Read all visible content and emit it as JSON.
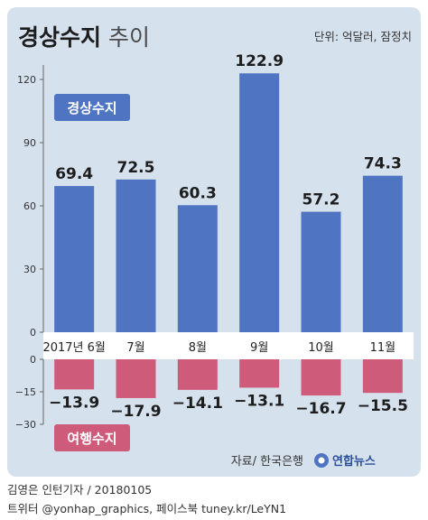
{
  "header": {
    "title_bold": "경상수지",
    "title_light": " 추이",
    "unit": "단위: 억달러, 잠정치"
  },
  "source": "자료/ 한국은행",
  "brand": "연합뉴스",
  "footer": {
    "credit": "김영은 인턴기자 / 20180105",
    "social": "트위터 @yonhap_graphics, 페이스북 tuney.kr/LeYN1"
  },
  "colors": {
    "background": "#d6e1ee",
    "current_account": "#4f75c2",
    "travel_balance": "#cf5b7b",
    "title_dark": "#1d1d1d"
  },
  "chart_data": [
    {
      "type": "bar",
      "series": [
        {
          "name": "경상수지",
          "values": [
            69.4,
            72.5,
            60.3,
            122.9,
            57.2,
            74.3
          ]
        }
      ],
      "data_labels": [
        "69.4",
        "72.5",
        "60.3",
        "122.9",
        "57.2",
        "74.3"
      ],
      "yticks": [
        "120",
        "90",
        "60",
        "30",
        "0"
      ],
      "ylim": [
        0,
        130
      ],
      "grid": false
    },
    {
      "type": "bar",
      "categories": [
        "2017년 6월",
        "7월",
        "8월",
        "9월",
        "10월",
        "11월"
      ],
      "series": [
        {
          "name": "여행수지",
          "values": [
            -13.9,
            -17.9,
            -14.1,
            -13.1,
            -16.7,
            -15.5
          ]
        }
      ],
      "data_labels": [
        "−13.9",
        "−17.9",
        "−14.1",
        "−13.1",
        "−16.7",
        "−15.5"
      ],
      "yticks": [
        "0",
        "−15",
        "−30"
      ],
      "ylim": [
        -30,
        0
      ],
      "grid": false
    }
  ]
}
